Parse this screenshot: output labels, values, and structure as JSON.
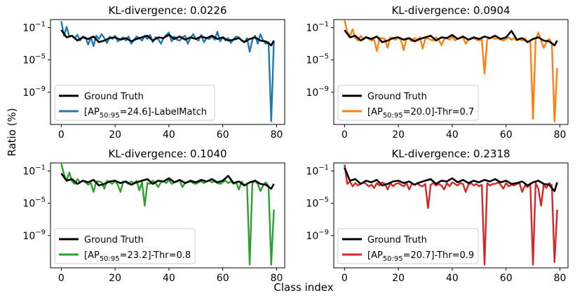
{
  "figure": {
    "xlabel": "Class index",
    "ylabel": "Ratio (%)"
  },
  "chart_data": [
    {
      "type": "line",
      "title": "KL-divergence: 0.0226",
      "xlim": [
        -4,
        83
      ],
      "ylim_log10": [
        -13,
        0
      ],
      "xticks": [
        0,
        20,
        40,
        60,
        80
      ],
      "yticks_log10": [
        -1,
        -5,
        -9
      ],
      "legend_placement": "lower-left",
      "series": [
        {
          "name": "Ground Truth",
          "color": "#000000",
          "x": [
            0,
            2,
            4,
            6,
            8,
            10,
            12,
            14,
            16,
            18,
            20,
            22,
            24,
            26,
            28,
            30,
            32,
            34,
            36,
            38,
            40,
            42,
            44,
            46,
            48,
            50,
            52,
            54,
            56,
            58,
            60,
            62,
            64,
            66,
            68,
            70,
            72,
            74,
            76,
            78,
            79
          ],
          "log10_y": [
            -1.3,
            -2.2,
            -2.0,
            -2.6,
            -2.2,
            -2.4,
            -2.1,
            -2.8,
            -2.6,
            -2.3,
            -2.2,
            -2.5,
            -2.3,
            -2.7,
            -2.4,
            -2.2,
            -2.0,
            -2.6,
            -2.2,
            -2.3,
            -1.9,
            -2.4,
            -2.1,
            -2.5,
            -2.2,
            -2.4,
            -2.1,
            -2.3,
            -2.0,
            -2.4,
            -2.2,
            -2.6,
            -2.5,
            -2.3,
            -2.8,
            -2.4,
            -2.2,
            -2.6,
            -2.7,
            -3.2,
            -2.6
          ]
        },
        {
          "name": "[AP50:95=24.6]-LabelMatch",
          "color": "#1f77b4",
          "x": [
            0,
            1,
            2,
            3,
            4,
            5,
            6,
            7,
            8,
            9,
            10,
            11,
            12,
            13,
            14,
            15,
            16,
            17,
            18,
            19,
            20,
            21,
            22,
            23,
            24,
            25,
            26,
            27,
            28,
            29,
            30,
            31,
            32,
            33,
            34,
            35,
            36,
            37,
            38,
            39,
            40,
            41,
            42,
            43,
            44,
            45,
            46,
            47,
            48,
            49,
            50,
            51,
            52,
            53,
            54,
            55,
            56,
            57,
            58,
            59,
            60,
            61,
            62,
            63,
            64,
            65,
            66,
            67,
            68,
            69,
            70,
            71,
            72,
            73,
            74,
            75,
            76,
            77,
            78,
            79
          ],
          "log10_y": [
            -0.2,
            -2.0,
            -0.9,
            -2.1,
            -2.0,
            -2.3,
            -1.9,
            -2.6,
            -2.1,
            -2.2,
            -3.1,
            -2.2,
            -3.3,
            -2.0,
            -2.4,
            -1.8,
            -2.3,
            -2.9,
            -2.1,
            -2.4,
            -2.0,
            -2.7,
            -2.4,
            -2.2,
            -2.6,
            -2.1,
            -3.0,
            -2.5,
            -2.1,
            -2.3,
            -2.6,
            -2.0,
            -2.4,
            -1.9,
            -2.8,
            -2.2,
            -2.4,
            -3.0,
            -2.3,
            -1.9,
            -1.6,
            -2.7,
            -2.1,
            -2.5,
            -2.6,
            -2.2,
            -2.0,
            -3.0,
            -2.3,
            -1.8,
            -2.4,
            -2.6,
            -1.9,
            -2.8,
            -2.3,
            -2.4,
            -2.1,
            -2.5,
            -1.5,
            -2.7,
            -2.2,
            -2.6,
            -2.3,
            -2.9,
            -2.4,
            -2.1,
            -2.2,
            -2.6,
            -2.8,
            -2.3,
            -4.0,
            -2.5,
            -2.0,
            -3.0,
            -1.8,
            -2.6,
            -3.0,
            -2.8,
            -12.6,
            -2.7
          ]
        }
      ]
    },
    {
      "type": "line",
      "title": "KL-divergence: 0.0904",
      "xlim": [
        -4,
        83
      ],
      "ylim_log10": [
        -13,
        0
      ],
      "xticks": [
        0,
        20,
        40,
        60,
        80
      ],
      "yticks_log10": [
        -1,
        -5,
        -9
      ],
      "legend_placement": "lower-left",
      "series": [
        {
          "name": "Ground Truth",
          "color": "#000000",
          "x": [
            0,
            2,
            4,
            6,
            8,
            10,
            12,
            14,
            16,
            18,
            20,
            22,
            24,
            26,
            28,
            30,
            32,
            34,
            36,
            38,
            40,
            42,
            44,
            46,
            48,
            50,
            52,
            54,
            56,
            58,
            60,
            62,
            64,
            66,
            68,
            70,
            72,
            74,
            76,
            78,
            79
          ],
          "log10_y": [
            -1.3,
            -2.2,
            -2.0,
            -2.6,
            -2.2,
            -2.4,
            -2.1,
            -2.8,
            -2.6,
            -2.3,
            -2.2,
            -2.5,
            -2.3,
            -2.7,
            -2.4,
            -2.2,
            -2.0,
            -2.6,
            -2.2,
            -2.3,
            -1.9,
            -2.4,
            -2.1,
            -2.5,
            -2.2,
            -2.4,
            -2.1,
            -2.3,
            -2.0,
            -2.4,
            -2.2,
            -1.4,
            -2.5,
            -2.3,
            -2.8,
            -2.4,
            -2.2,
            -2.6,
            -2.7,
            -3.2,
            -2.6
          ]
        },
        {
          "name": "[AP50:95=20.0]-Thr=0.7",
          "color": "#ff7f0e",
          "x": [
            0,
            1,
            2,
            3,
            4,
            5,
            6,
            7,
            8,
            9,
            10,
            11,
            12,
            13,
            14,
            15,
            16,
            17,
            18,
            19,
            20,
            21,
            22,
            23,
            24,
            25,
            26,
            27,
            28,
            29,
            30,
            31,
            32,
            33,
            34,
            35,
            36,
            37,
            38,
            39,
            40,
            41,
            42,
            43,
            44,
            45,
            46,
            47,
            48,
            49,
            50,
            51,
            52,
            53,
            54,
            55,
            56,
            57,
            58,
            59,
            60,
            61,
            62,
            63,
            64,
            65,
            66,
            67,
            68,
            69,
            70,
            71,
            72,
            73,
            74,
            75,
            76,
            77,
            78,
            79
          ],
          "log10_y": [
            -0.1,
            -1.5,
            -2.0,
            -1.2,
            -2.3,
            -2.6,
            -2.0,
            -2.5,
            -2.1,
            -2.4,
            -2.6,
            -2.5,
            -3.9,
            -2.3,
            -2.3,
            -2.4,
            -3.5,
            -2.2,
            -2.4,
            -2.5,
            -2.2,
            -2.6,
            -3.8,
            -2.3,
            -2.4,
            -2.7,
            -2.3,
            -2.5,
            -2.2,
            -3.6,
            -2.4,
            -2.3,
            -2.5,
            -2.6,
            -2.2,
            -2.5,
            -3.2,
            -2.4,
            -2.3,
            -2.5,
            -2.1,
            -2.6,
            -2.4,
            -2.3,
            -2.2,
            -3.0,
            -2.5,
            -2.4,
            -2.3,
            -2.5,
            -2.6,
            -2.4,
            -6.7,
            -2.5,
            -2.3,
            -2.2,
            -2.4,
            -2.3,
            -2.5,
            -2.6,
            -2.4,
            -2.2,
            -2.5,
            -2.3,
            -2.6,
            -2.4,
            -2.6,
            -2.3,
            -2.8,
            -2.6,
            -12.3,
            -2.5,
            -1.6,
            -2.6,
            -3.5,
            -2.8,
            -2.4,
            -2.9,
            -12.6,
            -6.0
          ]
        }
      ]
    },
    {
      "type": "line",
      "title": "KL-divergence: 0.1040",
      "xlim": [
        -4,
        83
      ],
      "ylim_log10": [
        -13,
        0
      ],
      "xticks": [
        0,
        20,
        40,
        60,
        80
      ],
      "yticks_log10": [
        -1,
        -5,
        -9
      ],
      "legend_placement": "lower-left",
      "series": [
        {
          "name": "Ground Truth",
          "color": "#000000",
          "x": [
            0,
            2,
            4,
            6,
            8,
            10,
            12,
            14,
            16,
            18,
            20,
            22,
            24,
            26,
            28,
            30,
            32,
            34,
            36,
            38,
            40,
            42,
            44,
            46,
            48,
            50,
            52,
            54,
            56,
            58,
            60,
            62,
            64,
            66,
            68,
            70,
            72,
            74,
            76,
            78,
            79
          ],
          "log10_y": [
            -1.3,
            -2.2,
            -2.0,
            -2.6,
            -2.2,
            -2.4,
            -2.1,
            -2.8,
            -2.6,
            -2.3,
            -2.2,
            -2.5,
            -2.3,
            -2.7,
            -2.4,
            -2.2,
            -2.0,
            -2.6,
            -2.2,
            -2.3,
            -1.9,
            -2.4,
            -2.1,
            -2.5,
            -2.2,
            -2.4,
            -2.1,
            -2.3,
            -2.0,
            -2.4,
            -2.2,
            -1.6,
            -2.5,
            -2.3,
            -2.8,
            -2.4,
            -2.2,
            -2.6,
            -2.7,
            -3.2,
            -2.6
          ]
        },
        {
          "name": "[AP50:95=23.2]-Thr=0.8",
          "color": "#2ca02c",
          "x": [
            0,
            1,
            2,
            3,
            4,
            5,
            6,
            7,
            8,
            9,
            10,
            11,
            12,
            13,
            14,
            15,
            16,
            17,
            18,
            19,
            20,
            21,
            22,
            23,
            24,
            25,
            26,
            27,
            28,
            29,
            30,
            31,
            32,
            33,
            34,
            35,
            36,
            37,
            38,
            39,
            40,
            41,
            42,
            43,
            44,
            45,
            46,
            47,
            48,
            49,
            50,
            51,
            52,
            53,
            54,
            55,
            56,
            57,
            58,
            59,
            60,
            61,
            62,
            63,
            64,
            65,
            66,
            67,
            68,
            69,
            70,
            71,
            72,
            73,
            74,
            75,
            76,
            77,
            78,
            79
          ],
          "log10_y": [
            -0.1,
            -1.4,
            -2.2,
            -1.2,
            -2.3,
            -2.6,
            -2.0,
            -2.4,
            -2.2,
            -2.4,
            -2.7,
            -2.5,
            -3.6,
            -2.3,
            -2.3,
            -2.4,
            -3.2,
            -2.2,
            -2.4,
            -2.6,
            -2.2,
            -2.7,
            -3.6,
            -2.3,
            -2.4,
            -2.6,
            -2.3,
            -2.5,
            -2.2,
            -3.4,
            -2.4,
            -5.3,
            -2.5,
            -2.6,
            -2.2,
            -2.5,
            -3.0,
            -2.4,
            -2.3,
            -2.5,
            -2.1,
            -2.6,
            -2.4,
            -2.3,
            -2.2,
            -3.0,
            -2.5,
            -2.4,
            -2.3,
            -2.5,
            -2.6,
            -2.4,
            -2.3,
            -2.5,
            -2.3,
            -2.2,
            -2.4,
            -2.3,
            -2.5,
            -2.6,
            -2.4,
            -2.2,
            -2.5,
            -2.3,
            -2.6,
            -2.4,
            -3.3,
            -2.3,
            -2.8,
            -2.6,
            -12.6,
            -2.5,
            -2.2,
            -2.6,
            -3.5,
            -2.8,
            -2.4,
            -2.9,
            -12.6,
            -5.8
          ]
        }
      ]
    },
    {
      "type": "line",
      "title": "KL-divergence: 0.2318",
      "xlim": [
        -4,
        83
      ],
      "ylim_log10": [
        -13,
        0
      ],
      "xticks": [
        0,
        20,
        40,
        60,
        80
      ],
      "yticks_log10": [
        -1,
        -5,
        -9
      ],
      "legend_placement": "lower-left",
      "series": [
        {
          "name": "Ground Truth",
          "color": "#000000",
          "x": [
            0,
            2,
            4,
            6,
            8,
            10,
            12,
            14,
            16,
            18,
            20,
            22,
            24,
            26,
            28,
            30,
            32,
            34,
            36,
            38,
            40,
            42,
            44,
            46,
            48,
            50,
            52,
            54,
            56,
            58,
            60,
            62,
            64,
            66,
            68,
            70,
            72,
            74,
            76,
            78,
            79
          ],
          "log10_y": [
            -0.6,
            -2.2,
            -2.0,
            -2.6,
            -2.2,
            -2.4,
            -2.1,
            -2.8,
            -2.6,
            -2.3,
            -2.2,
            -2.5,
            -2.3,
            -2.7,
            -2.4,
            -2.2,
            -2.0,
            -2.6,
            -2.2,
            -2.3,
            -1.9,
            -2.4,
            -2.1,
            -2.5,
            -2.2,
            -2.4,
            -2.1,
            -2.3,
            -2.0,
            -2.4,
            -2.2,
            -2.6,
            -2.5,
            -2.3,
            -2.8,
            -2.4,
            -2.2,
            -2.6,
            -2.7,
            -3.5,
            -2.4
          ]
        },
        {
          "name": "[AP50:95=20.7]-Thr=0.9",
          "color": "#d62728",
          "x": [
            0,
            1,
            2,
            3,
            4,
            5,
            6,
            7,
            8,
            9,
            10,
            11,
            12,
            13,
            14,
            15,
            16,
            17,
            18,
            19,
            20,
            21,
            22,
            23,
            24,
            25,
            26,
            27,
            28,
            29,
            30,
            31,
            32,
            33,
            34,
            35,
            36,
            37,
            38,
            39,
            40,
            41,
            42,
            43,
            44,
            45,
            46,
            47,
            48,
            49,
            50,
            51,
            52,
            53,
            54,
            55,
            56,
            57,
            58,
            59,
            60,
            61,
            62,
            63,
            64,
            65,
            66,
            67,
            68,
            69,
            70,
            71,
            72,
            73,
            74,
            75,
            76,
            77,
            78,
            79
          ],
          "log10_y": [
            -0.2,
            -2.6,
            -2.3,
            -2.9,
            -2.5,
            -2.8,
            -2.6,
            -2.4,
            -2.6,
            -2.9,
            -2.7,
            -3.1,
            -2.5,
            -2.8,
            -2.4,
            -2.6,
            -3.3,
            -2.5,
            -2.9,
            -2.6,
            -2.5,
            -2.7,
            -2.9,
            -2.5,
            -3.3,
            -2.6,
            -2.7,
            -2.5,
            -2.8,
            -2.9,
            -2.6,
            -5.6,
            -2.7,
            -2.5,
            -2.8,
            -2.6,
            -2.8,
            -3.3,
            -2.5,
            -2.9,
            -2.4,
            -2.6,
            -2.8,
            -2.5,
            -2.6,
            -3.6,
            -2.7,
            -2.5,
            -2.8,
            -2.6,
            -2.9,
            -2.7,
            -12.6,
            -2.5,
            -2.8,
            -2.6,
            -2.6,
            -2.4,
            -2.7,
            -3.2,
            -2.5,
            -2.9,
            -2.7,
            -2.8,
            -2.6,
            -2.5,
            -3.6,
            -2.8,
            -3.0,
            -2.6,
            -12.6,
            -2.5,
            -3.2,
            -5.3,
            -2.7,
            -3.1,
            -2.5,
            -2.8,
            -12.3,
            -5.8
          ]
        }
      ]
    }
  ]
}
